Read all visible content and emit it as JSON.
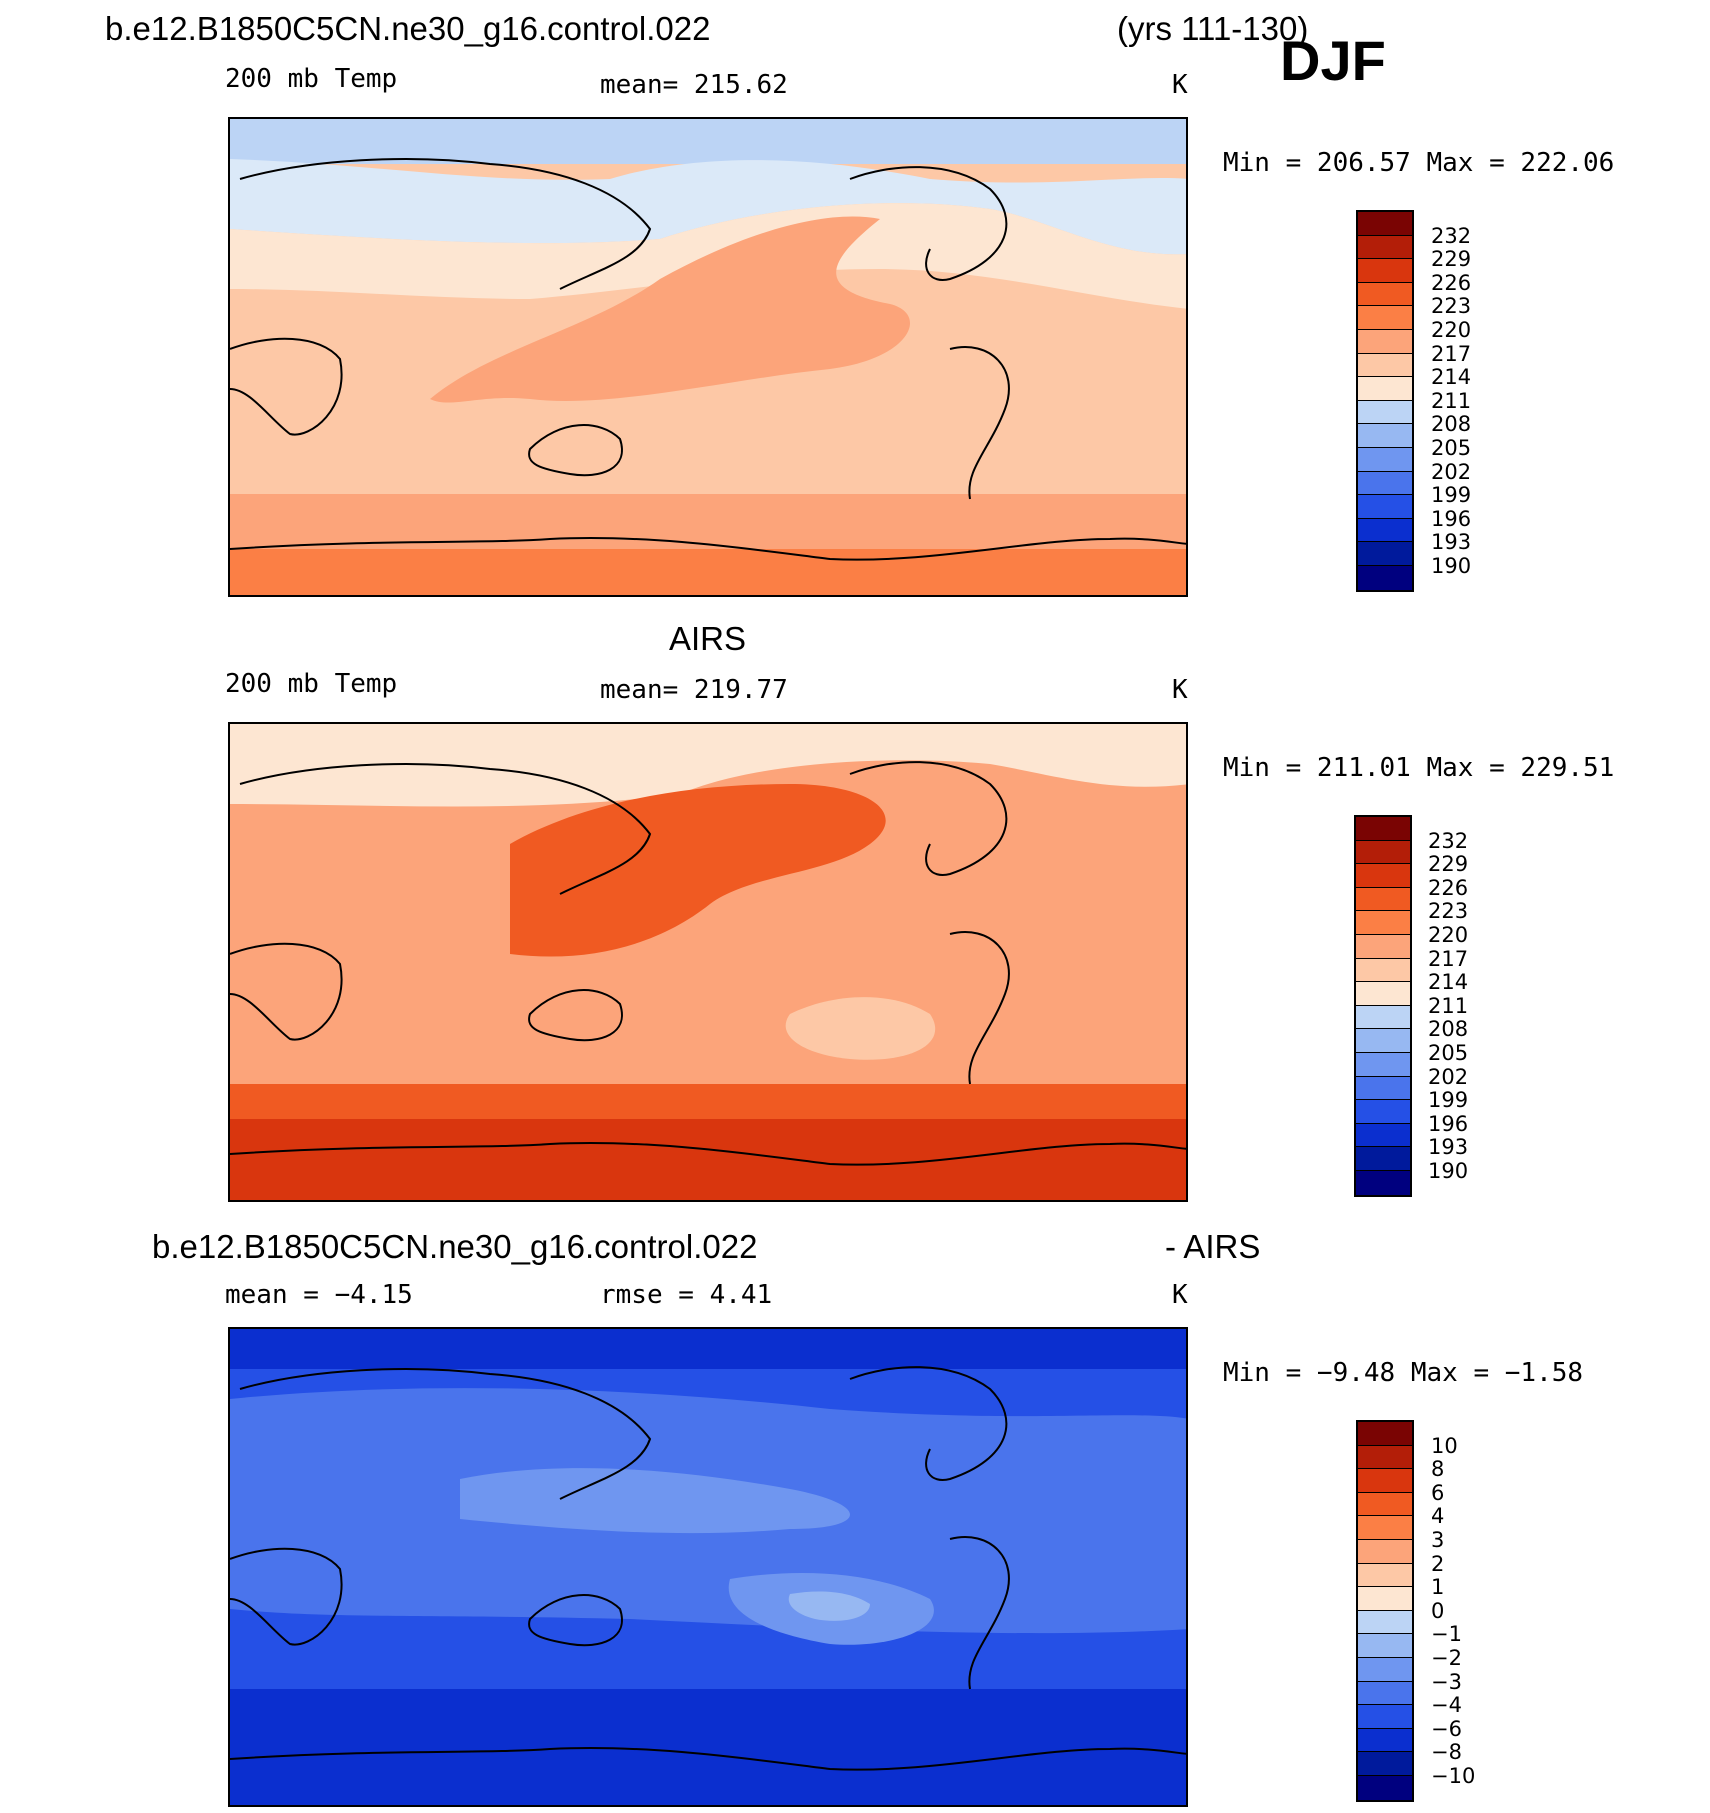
{
  "header": {
    "case": "b.e12.B1850C5CN.ne30_g16.control.022",
    "years": "(yrs 111-130)",
    "season": "DJF"
  },
  "chart_data": [
    {
      "type": "heatmap",
      "title": "b.e12.B1850C5CN.ne30_g16.control.022",
      "left_label": "200 mb Temp",
      "center_label": "mean=  215.62",
      "units": "K",
      "stats": "Min  =  206.57  Max  =  222.06",
      "mean": 215.62,
      "min": 206.57,
      "max": 222.06,
      "colorbar_labels": [
        "232",
        "229",
        "226",
        "223",
        "220",
        "217",
        "214",
        "211",
        "208",
        "205",
        "202",
        "199",
        "196",
        "193",
        "190"
      ],
      "zonal_profile_note": "cold high-latitude northern band, warm southern high latitudes"
    },
    {
      "type": "heatmap",
      "title": "AIRS",
      "left_label": "200 mb Temp",
      "center_label": "mean=  219.77",
      "units": "K",
      "stats": "Min  =  211.01  Max  =  229.51",
      "mean": 219.77,
      "min": 211.01,
      "max": 229.51,
      "colorbar_labels": [
        "232",
        "229",
        "226",
        "223",
        "220",
        "217",
        "214",
        "211",
        "208",
        "205",
        "202",
        "199",
        "196",
        "193",
        "190"
      ]
    },
    {
      "type": "heatmap",
      "title_left": "b.e12.B1850C5CN.ne30_g16.control.022",
      "title_right": "- AIRS",
      "left_label": "mean  =    −4.15",
      "center_label": "rmse  =     4.41",
      "units": "K",
      "stats": "Min  =    −9.48  Max  =   −1.58",
      "mean": -4.15,
      "rmse": 4.41,
      "min": -9.48,
      "max": -1.58,
      "colorbar_labels": [
        "10",
        "8",
        "6",
        "4",
        "3",
        "2",
        "1",
        "0",
        "−1",
        "−2",
        "−3",
        "−4",
        "−6",
        "−8",
        "−10"
      ]
    }
  ],
  "palette": [
    "#7a0403",
    "#b31e08",
    "#d9360e",
    "#f05a22",
    "#fb7f45",
    "#fca47a",
    "#fdc8a6",
    "#fde6d2",
    "#dbe9f8",
    "#bcd4f5",
    "#97b8f2",
    "#6f96f0",
    "#4a74ec",
    "#2550e6",
    "#0b2fcf",
    "#001a9c",
    "#00007f"
  ]
}
